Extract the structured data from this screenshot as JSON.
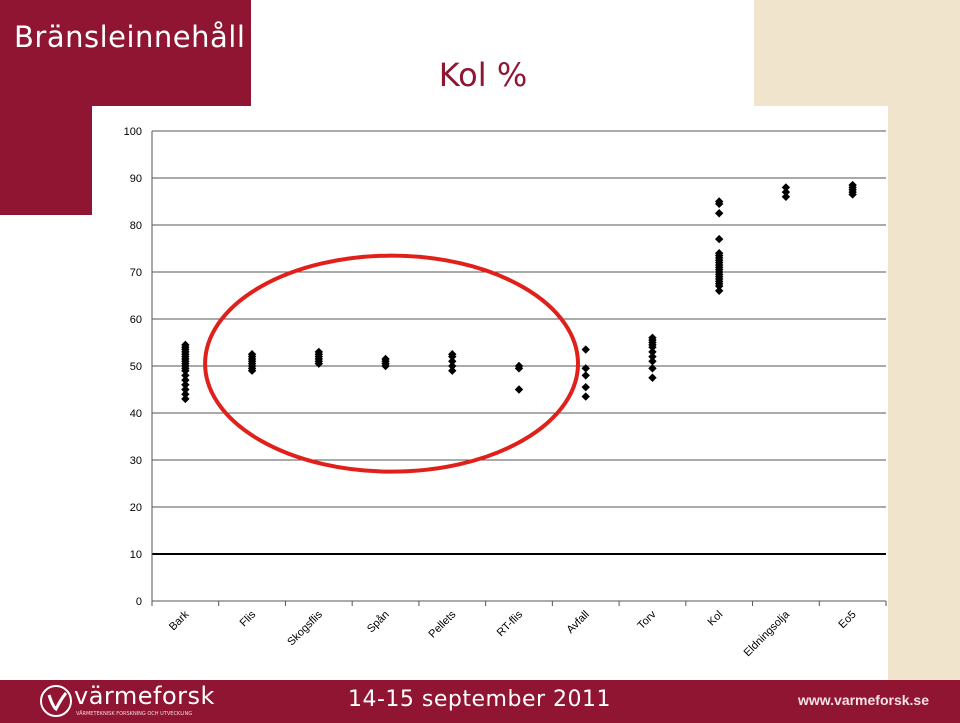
{
  "header": {
    "section_title": "Bränsleinnehåll",
    "slide_title": "Kol %"
  },
  "colors": {
    "brand": "#8f1533",
    "cream": "#f0e4cc",
    "circle": "#e0201a"
  },
  "chart_data": {
    "type": "scatter",
    "title": "Kol %",
    "xlabel": "",
    "ylabel": "",
    "ylim": [
      0,
      100
    ],
    "yticks": [
      0,
      10,
      20,
      30,
      40,
      50,
      60,
      70,
      80,
      90,
      100
    ],
    "grid": "horizontal",
    "categories": [
      "Bark",
      "Flis",
      "Skogsflis",
      "Spån",
      "Pellets",
      "RT-flis",
      "Avfall",
      "Torv",
      "Kol",
      "Eldningsolja",
      "Eo5"
    ],
    "series": [
      {
        "values": [
          [
            43,
            44,
            45,
            46,
            47,
            48,
            49,
            49.5,
            50,
            50.5,
            51,
            51.5,
            52,
            52.5,
            53,
            53.5,
            54,
            54.5
          ],
          [
            49,
            49.5,
            50,
            50.5,
            51,
            51.5,
            52,
            52.5
          ],
          [
            50.5,
            51,
            51.5,
            52,
            52.5,
            53
          ],
          [
            50,
            50.5,
            51,
            51.5
          ],
          [
            49,
            50,
            51,
            52,
            52.5
          ],
          [
            45,
            49.5,
            50
          ],
          [
            43.5,
            45.5,
            48,
            49.5,
            53.5
          ],
          [
            47.5,
            49.5,
            51,
            52,
            53,
            54,
            54.5,
            55,
            55.5,
            56
          ],
          [
            66,
            67,
            67.5,
            68,
            68.5,
            69,
            69.5,
            70,
            70.5,
            71,
            71.5,
            72,
            72.5,
            73,
            73.5,
            74,
            77,
            82.5,
            84.5,
            85
          ],
          [
            86,
            87,
            88
          ],
          [
            86.5,
            87,
            87.5,
            88,
            88.5
          ]
        ]
      }
    ],
    "annotations": [
      {
        "type": "ellipse",
        "encloses": [
          "Flis",
          "Skogsflis",
          "Spån",
          "Pellets",
          "RT-flis"
        ]
      }
    ]
  },
  "footer": {
    "logo_text": "värmeforsk",
    "logo_tagline": "VÄRMETEKNISK FORSKNING OCH UTVECKLING",
    "date": "14-15 september 2011",
    "url": "www.varmeforsk.se"
  }
}
